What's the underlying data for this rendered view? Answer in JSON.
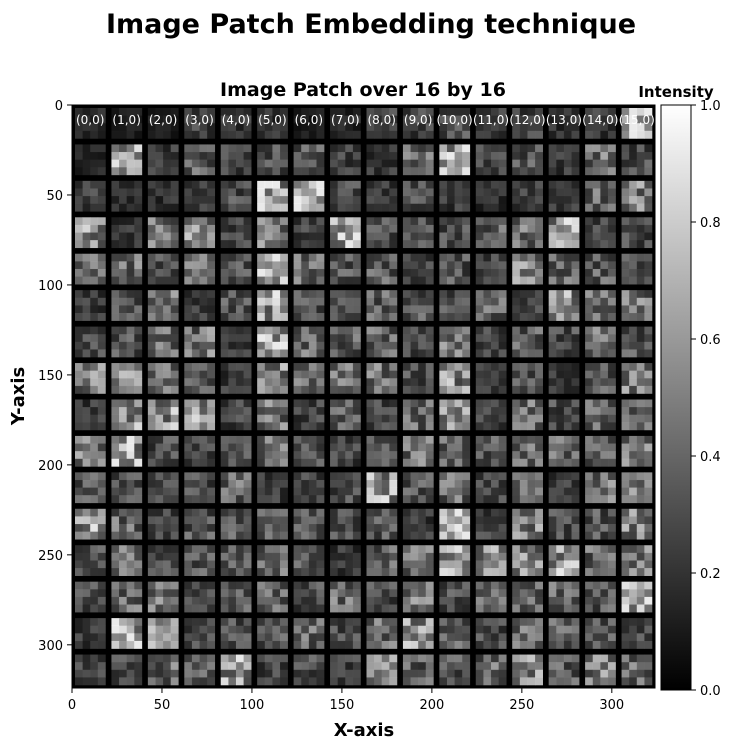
{
  "chart_data": {
    "type": "heatmap",
    "suptitle": "Image Patch Embedding technique",
    "title": "Image Patch over 16 by 16",
    "xlabel": "X-axis",
    "ylabel": "Y-axis",
    "colorbar_label": "Intensity",
    "colormap": "gray",
    "image_size": [
      324,
      324
    ],
    "grid": [
      16,
      16
    ],
    "xlim": [
      0,
      324
    ],
    "ylim": [
      324,
      0
    ],
    "x_ticks": [
      "0",
      "50",
      "100",
      "150",
      "200",
      "250",
      "300"
    ],
    "y_ticks": [
      "0",
      "50",
      "100",
      "150",
      "200",
      "250",
      "300"
    ],
    "colorbar_range": [
      0.0,
      1.0
    ],
    "colorbar_ticks": [
      "0.0",
      "0.2",
      "0.4",
      "0.6",
      "0.8",
      "1.0"
    ],
    "patch_labels": [
      "(0,0)",
      "(1,0)",
      "(2,0)",
      "(3,0)",
      "(4,0)",
      "(5,0)",
      "(6,0)",
      "(7,0)",
      "(8,0)",
      "(9,0)",
      "(10,0)",
      "(11,0)",
      "(12,0)",
      "(13,0)",
      "(14,0)",
      "(15,0)"
    ],
    "patch_brightness": [
      [
        0.2,
        0.15,
        0.15,
        0.35,
        0.3,
        0.25,
        0.15,
        0.2,
        0.35,
        0.35,
        0.4,
        0.3,
        0.35,
        0.25,
        0.3,
        0.9
      ],
      [
        0.2,
        0.9,
        0.3,
        0.5,
        0.35,
        0.4,
        0.5,
        0.35,
        0.3,
        0.55,
        0.9,
        0.35,
        0.45,
        0.3,
        0.6,
        0.4
      ],
      [
        0.35,
        0.25,
        0.25,
        0.3,
        0.4,
        0.85,
        0.9,
        0.4,
        0.3,
        0.4,
        0.3,
        0.25,
        0.35,
        0.3,
        0.55,
        0.7
      ],
      [
        0.8,
        0.3,
        0.6,
        0.7,
        0.35,
        0.65,
        0.35,
        0.9,
        0.4,
        0.4,
        0.4,
        0.5,
        0.6,
        0.85,
        0.35,
        0.4
      ],
      [
        0.55,
        0.6,
        0.4,
        0.55,
        0.45,
        0.85,
        0.55,
        0.45,
        0.5,
        0.35,
        0.45,
        0.35,
        0.7,
        0.55,
        0.5,
        0.5
      ],
      [
        0.3,
        0.4,
        0.6,
        0.3,
        0.45,
        0.85,
        0.45,
        0.4,
        0.5,
        0.45,
        0.4,
        0.55,
        0.35,
        0.75,
        0.55,
        0.6
      ],
      [
        0.4,
        0.45,
        0.55,
        0.6,
        0.3,
        0.9,
        0.55,
        0.5,
        0.55,
        0.35,
        0.6,
        0.35,
        0.5,
        0.4,
        0.6,
        0.45
      ],
      [
        0.65,
        0.7,
        0.6,
        0.45,
        0.3,
        0.75,
        0.6,
        0.55,
        0.6,
        0.4,
        0.75,
        0.3,
        0.5,
        0.3,
        0.45,
        0.65
      ],
      [
        0.3,
        0.75,
        0.8,
        0.75,
        0.35,
        0.6,
        0.35,
        0.5,
        0.35,
        0.55,
        0.7,
        0.35,
        0.6,
        0.4,
        0.5,
        0.5
      ],
      [
        0.65,
        0.85,
        0.4,
        0.35,
        0.4,
        0.55,
        0.4,
        0.35,
        0.4,
        0.6,
        0.5,
        0.45,
        0.55,
        0.55,
        0.5,
        0.6
      ],
      [
        0.45,
        0.4,
        0.45,
        0.4,
        0.55,
        0.3,
        0.35,
        0.4,
        0.8,
        0.45,
        0.55,
        0.35,
        0.5,
        0.3,
        0.6,
        0.65
      ],
      [
        0.8,
        0.55,
        0.4,
        0.45,
        0.45,
        0.45,
        0.5,
        0.4,
        0.5,
        0.3,
        0.85,
        0.35,
        0.7,
        0.4,
        0.45,
        0.7
      ],
      [
        0.4,
        0.55,
        0.4,
        0.45,
        0.45,
        0.55,
        0.45,
        0.3,
        0.5,
        0.6,
        0.8,
        0.7,
        0.7,
        0.8,
        0.55,
        0.65
      ],
      [
        0.4,
        0.55,
        0.6,
        0.35,
        0.45,
        0.5,
        0.4,
        0.55,
        0.4,
        0.6,
        0.4,
        0.5,
        0.5,
        0.55,
        0.45,
        0.9
      ],
      [
        0.3,
        0.9,
        0.75,
        0.4,
        0.4,
        0.45,
        0.55,
        0.4,
        0.55,
        0.75,
        0.5,
        0.4,
        0.6,
        0.55,
        0.45,
        0.4
      ],
      [
        0.35,
        0.4,
        0.55,
        0.45,
        0.8,
        0.35,
        0.4,
        0.35,
        0.75,
        0.5,
        0.45,
        0.55,
        0.7,
        0.5,
        0.65,
        0.55
      ]
    ]
  }
}
